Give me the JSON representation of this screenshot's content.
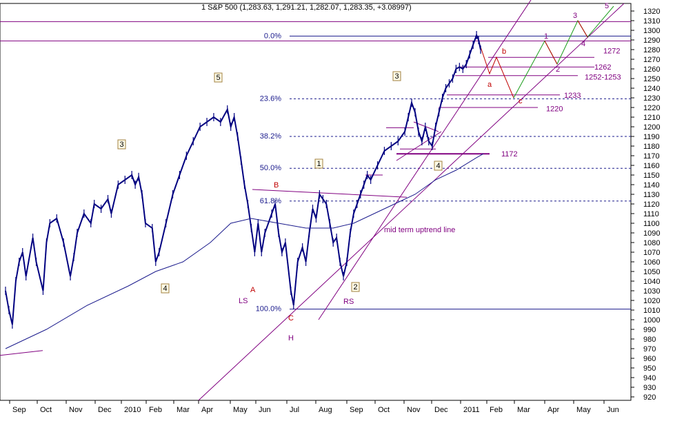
{
  "chart_data": {
    "type": "ohlc",
    "title": "1 S&P 500 (1,283.63, 1,291.21, 1,282.07, 1,283.35, +3.08997)",
    "y_range": [
      915,
      1325
    ],
    "y_ticks": [
      920,
      930,
      940,
      950,
      960,
      970,
      980,
      990,
      1000,
      1010,
      1020,
      1030,
      1040,
      1050,
      1060,
      1070,
      1080,
      1090,
      1100,
      1110,
      1120,
      1130,
      1140,
      1150,
      1160,
      1170,
      1180,
      1190,
      1200,
      1210,
      1220,
      1230,
      1240,
      1250,
      1260,
      1270,
      1280,
      1290,
      1300,
      1310,
      1320
    ],
    "x_labels": [
      "Sep",
      "Oct",
      "Nov",
      "Dec",
      "2010",
      "Feb",
      "Mar",
      "Apr",
      "May",
      "Jun",
      "Jul",
      "Aug",
      "Sep",
      "Oct",
      "Nov",
      "Dec",
      "2011",
      "Feb",
      "Mar",
      "Apr",
      "May",
      "Jun"
    ],
    "price_series": [
      {
        "name": "S&P 500 swing points",
        "values": [
          [
            0,
            1030
          ],
          [
            5,
            1010
          ],
          [
            10,
            995
          ],
          [
            15,
            1040
          ],
          [
            20,
            1060
          ],
          [
            25,
            1070
          ],
          [
            30,
            1045
          ],
          [
            40,
            1085
          ],
          [
            45,
            1060
          ],
          [
            55,
            1030
          ],
          [
            60,
            1080
          ],
          [
            65,
            1100
          ],
          [
            75,
            1105
          ],
          [
            85,
            1080
          ],
          [
            95,
            1045
          ],
          [
            100,
            1065
          ],
          [
            105,
            1090
          ],
          [
            115,
            1110
          ],
          [
            125,
            1100
          ],
          [
            130,
            1120
          ],
          [
            140,
            1115
          ],
          [
            150,
            1125
          ],
          [
            155,
            1110
          ],
          [
            165,
            1140
          ],
          [
            175,
            1145
          ],
          [
            185,
            1150
          ],
          [
            190,
            1140
          ],
          [
            195,
            1148
          ],
          [
            200,
            1130
          ],
          [
            205,
            1100
          ],
          [
            215,
            1095
          ],
          [
            220,
            1060
          ],
          [
            225,
            1070
          ],
          [
            235,
            1100
          ],
          [
            245,
            1130
          ],
          [
            255,
            1150
          ],
          [
            265,
            1170
          ],
          [
            275,
            1185
          ],
          [
            285,
            1200
          ],
          [
            295,
            1205
          ],
          [
            305,
            1210
          ],
          [
            315,
            1205
          ],
          [
            325,
            1218
          ],
          [
            330,
            1200
          ],
          [
            335,
            1210
          ],
          [
            340,
            1190
          ],
          [
            345,
            1165
          ],
          [
            350,
            1140
          ],
          [
            355,
            1120
          ],
          [
            360,
            1095
          ],
          [
            365,
            1070
          ],
          [
            370,
            1100
          ],
          [
            375,
            1070
          ],
          [
            380,
            1090
          ],
          [
            390,
            1110
          ],
          [
            395,
            1120
          ],
          [
            400,
            1090
          ],
          [
            405,
            1070
          ],
          [
            410,
            1080
          ],
          [
            418,
            1030
          ],
          [
            422,
            1015
          ],
          [
            428,
            1060
          ],
          [
            435,
            1075
          ],
          [
            440,
            1060
          ],
          [
            445,
            1090
          ],
          [
            450,
            1115
          ],
          [
            455,
            1105
          ],
          [
            460,
            1130
          ],
          [
            465,
            1125
          ],
          [
            470,
            1120
          ],
          [
            475,
            1100
          ],
          [
            480,
            1080
          ],
          [
            485,
            1085
          ],
          [
            490,
            1060
          ],
          [
            495,
            1045
          ],
          [
            500,
            1060
          ],
          [
            505,
            1090
          ],
          [
            510,
            1110
          ],
          [
            515,
            1120
          ],
          [
            520,
            1130
          ],
          [
            525,
            1140
          ],
          [
            530,
            1150
          ],
          [
            535,
            1145
          ],
          [
            545,
            1160
          ],
          [
            555,
            1175
          ],
          [
            565,
            1180
          ],
          [
            575,
            1185
          ],
          [
            585,
            1195
          ],
          [
            590,
            1210
          ],
          [
            595,
            1225
          ],
          [
            600,
            1215
          ],
          [
            605,
            1195
          ],
          [
            610,
            1185
          ],
          [
            615,
            1200
          ],
          [
            620,
            1185
          ],
          [
            625,
            1180
          ],
          [
            630,
            1200
          ],
          [
            635,
            1215
          ],
          [
            640,
            1230
          ],
          [
            645,
            1240
          ],
          [
            650,
            1245
          ],
          [
            655,
            1250
          ],
          [
            660,
            1260
          ],
          [
            665,
            1262
          ],
          [
            670,
            1260
          ],
          [
            675,
            1265
          ],
          [
            680,
            1275
          ],
          [
            685,
            1285
          ],
          [
            690,
            1295
          ],
          [
            693,
            1290
          ],
          [
            696,
            1280
          ]
        ]
      },
      {
        "name": "Moving average",
        "values": [
          [
            0,
            970
          ],
          [
            60,
            990
          ],
          [
            120,
            1015
          ],
          [
            180,
            1035
          ],
          [
            220,
            1050
          ],
          [
            260,
            1060
          ],
          [
            300,
            1080
          ],
          [
            330,
            1100
          ],
          [
            360,
            1105
          ],
          [
            400,
            1100
          ],
          [
            440,
            1095
          ],
          [
            480,
            1095
          ],
          [
            510,
            1100
          ],
          [
            540,
            1110
          ],
          [
            570,
            1120
          ],
          [
            600,
            1130
          ],
          [
            630,
            1145
          ],
          [
            660,
            1155
          ],
          [
            690,
            1168
          ],
          [
            700,
            1172
          ]
        ]
      }
    ],
    "fibonacci_levels": [
      {
        "label": "0.0%",
        "value": 1294
      },
      {
        "label": "23.6%",
        "value": 1229
      },
      {
        "label": "38.2%",
        "value": 1190
      },
      {
        "label": "50.0%",
        "value": 1157
      },
      {
        "label": "61.8%",
        "value": 1123
      },
      {
        "label": "100.0%",
        "value": 1011
      }
    ],
    "horizontal_levels": [
      {
        "label": "1272",
        "value": 1272
      },
      {
        "label": "1262",
        "value": 1262
      },
      {
        "label": "1252-1253",
        "value": 1253
      },
      {
        "label": "1233",
        "value": 1233
      },
      {
        "label": "1220",
        "value": 1220
      },
      {
        "label": "1172",
        "value": 1172
      }
    ],
    "wave_labels": {
      "boxed": [
        "5",
        "3",
        "3",
        "4",
        "1",
        "4",
        "2"
      ],
      "plain_purple": [
        "LS",
        "RS",
        "H",
        "3",
        "5",
        "4",
        "1",
        "2"
      ],
      "plain_red": [
        "A",
        "B",
        "C",
        "a",
        "b",
        "c"
      ]
    },
    "annotations": [
      "mid term uptrend line"
    ]
  }
}
